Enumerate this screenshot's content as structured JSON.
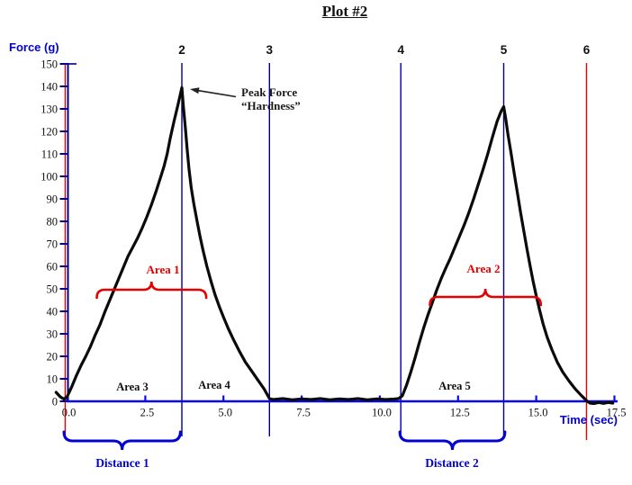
{
  "chart_data": {
    "type": "line",
    "title": "Plot #2",
    "xlabel": "Time (sec)",
    "ylabel": "Force (g)",
    "xlim": [
      0,
      17.5
    ],
    "ylim": [
      0,
      150
    ],
    "grid": false,
    "x_ticks": {
      "values": [
        0,
        2.5,
        5,
        7.5,
        10,
        12.5,
        15,
        17.5
      ],
      "labels": [
        "0.0",
        "2.5",
        "5.0",
        "7.5",
        "10.0",
        "12.5",
        "15.0",
        "17.5"
      ]
    },
    "y_ticks": {
      "start": 0,
      "end": 150,
      "step": 10
    },
    "peaks": {
      "peak1_force_g": 140,
      "peak1_time_s": 3.67,
      "peak2_force_g": 131,
      "peak2_time_s": 13.96
    },
    "event_markers": [
      {
        "label": "",
        "t": -0.06,
        "color": "#e60000"
      },
      {
        "label": "2",
        "t": 3.67,
        "color": "#00008b"
      },
      {
        "label": "3",
        "t": 6.47,
        "color": "#00008b"
      },
      {
        "label": "4",
        "t": 10.67,
        "color": "#00008b"
      },
      {
        "label": "5",
        "t": 13.96,
        "color": "#00008b"
      },
      {
        "label": "6",
        "t": 16.61,
        "color": "#e60000"
      }
    ],
    "series": [
      {
        "name": "force-trace",
        "color": "#0a0a0a",
        "points": [
          [
            -0.35,
            4
          ],
          [
            -0.22,
            2
          ],
          [
            -0.1,
            1
          ],
          [
            0,
            2
          ],
          [
            0.15,
            6.5
          ],
          [
            0.3,
            11.5
          ],
          [
            0.45,
            16
          ],
          [
            0.6,
            20
          ],
          [
            0.75,
            24.5
          ],
          [
            0.9,
            29.5
          ],
          [
            1.05,
            34
          ],
          [
            1.2,
            39.5
          ],
          [
            1.35,
            44.5
          ],
          [
            1.5,
            49.5
          ],
          [
            1.65,
            54.5
          ],
          [
            1.8,
            59.5
          ],
          [
            1.95,
            64.5
          ],
          [
            2.1,
            68.5
          ],
          [
            2.25,
            72.5
          ],
          [
            2.4,
            77
          ],
          [
            2.55,
            82
          ],
          [
            2.7,
            87.5
          ],
          [
            2.85,
            93.5
          ],
          [
            3,
            100
          ],
          [
            3.1,
            104.5
          ],
          [
            3.2,
            110
          ],
          [
            3.3,
            117
          ],
          [
            3.42,
            124.5
          ],
          [
            3.55,
            132
          ],
          [
            3.67,
            139.5
          ],
          [
            3.72,
            131
          ],
          [
            3.78,
            122
          ],
          [
            3.84,
            112
          ],
          [
            3.9,
            103
          ],
          [
            3.97,
            95
          ],
          [
            4.05,
            88
          ],
          [
            4.15,
            80.5
          ],
          [
            4.25,
            73.5
          ],
          [
            4.35,
            67
          ],
          [
            4.47,
            60
          ],
          [
            4.6,
            53.5
          ],
          [
            4.73,
            47.5
          ],
          [
            4.87,
            42
          ],
          [
            5,
            37.5
          ],
          [
            5.15,
            32.5
          ],
          [
            5.32,
            27.5
          ],
          [
            5.5,
            22.5
          ],
          [
            5.7,
            17.5
          ],
          [
            5.9,
            13.5
          ],
          [
            6.1,
            9.5
          ],
          [
            6.3,
            5.5
          ],
          [
            6.47,
            1.2
          ],
          [
            6.6,
            0.8
          ],
          [
            6.9,
            1.2
          ],
          [
            7.2,
            0.7
          ],
          [
            7.5,
            1.1
          ],
          [
            7.8,
            0.8
          ],
          [
            8.1,
            1.2
          ],
          [
            8.4,
            0.7
          ],
          [
            8.7,
            1.1
          ],
          [
            9,
            0.8
          ],
          [
            9.3,
            1.2
          ],
          [
            9.6,
            0.7
          ],
          [
            9.9,
            1.1
          ],
          [
            10.2,
            0.8
          ],
          [
            10.45,
            1
          ],
          [
            10.6,
            1.2
          ],
          [
            10.72,
            2.5
          ],
          [
            10.85,
            7
          ],
          [
            10.98,
            12.5
          ],
          [
            11.12,
            19
          ],
          [
            11.26,
            26
          ],
          [
            11.4,
            32.5
          ],
          [
            11.54,
            38.5
          ],
          [
            11.68,
            44
          ],
          [
            11.82,
            49.5
          ],
          [
            11.96,
            54.5
          ],
          [
            12.1,
            59
          ],
          [
            12.25,
            63.5
          ],
          [
            12.4,
            68.5
          ],
          [
            12.55,
            73.5
          ],
          [
            12.7,
            78.5
          ],
          [
            12.85,
            84
          ],
          [
            13,
            90
          ],
          [
            13.15,
            96.5
          ],
          [
            13.3,
            103
          ],
          [
            13.45,
            110
          ],
          [
            13.6,
            117.5
          ],
          [
            13.75,
            124.5
          ],
          [
            13.88,
            129
          ],
          [
            13.96,
            131
          ],
          [
            14.02,
            126
          ],
          [
            14.1,
            118.5
          ],
          [
            14.2,
            110
          ],
          [
            14.3,
            101
          ],
          [
            14.4,
            92.5
          ],
          [
            14.5,
            84
          ],
          [
            14.6,
            76
          ],
          [
            14.7,
            68
          ],
          [
            14.8,
            60.5
          ],
          [
            14.9,
            53.5
          ],
          [
            15,
            47
          ],
          [
            15.1,
            41
          ],
          [
            15.22,
            34.5
          ],
          [
            15.35,
            28.5
          ],
          [
            15.5,
            23
          ],
          [
            15.67,
            17.5
          ],
          [
            15.85,
            13
          ],
          [
            16.05,
            9
          ],
          [
            16.25,
            5.5
          ],
          [
            16.45,
            2.5
          ],
          [
            16.61,
            0.3
          ],
          [
            16.72,
            -0.8
          ],
          [
            16.85,
            -1
          ],
          [
            17,
            -0.5
          ],
          [
            17.15,
            -0.9
          ],
          [
            17.3,
            -0.5
          ],
          [
            17.45,
            -0.8
          ]
        ]
      }
    ]
  },
  "annotations": {
    "peak_line1": "Peak Force",
    "peak_line2": "“Hardness”",
    "area1": {
      "label": "Area 1",
      "t1": 0.95,
      "t2": 4.45,
      "level": 49.6
    },
    "area2": {
      "label": "Area 2",
      "t1": 11.6,
      "t2": 15.15,
      "level": 46.4
    },
    "area3": {
      "label": "Area 3"
    },
    "area4": {
      "label": "Area 4"
    },
    "area5": {
      "label": "Area 5"
    },
    "distance1": {
      "label": "Distance 1",
      "t1": -0.1,
      "t2": 3.62
    },
    "distance2": {
      "label": "Distance 2",
      "t1": 10.64,
      "t2": 14.0
    }
  },
  "colors": {
    "x_axis": "#0808ee",
    "y_axis": "#00008b",
    "red": "#e60000",
    "blue_text": "#0202d2",
    "curve": "#0a0a0a",
    "arrow": "#222222"
  }
}
